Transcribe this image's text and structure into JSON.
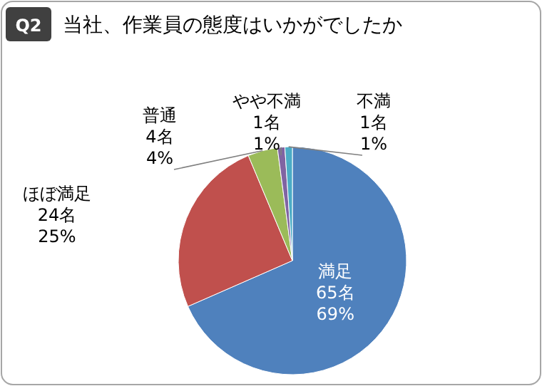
{
  "chart_data": {
    "type": "pie",
    "title": "当社、作業員の態度はいかがでしたか",
    "annotations": [
      "Q2"
    ],
    "categories": [
      "満足",
      "ほぼ満足",
      "普通",
      "やや不満",
      "不満"
    ],
    "values": [
      65,
      24,
      4,
      1,
      1
    ],
    "value_labels": [
      "65名\n69%",
      "24名\n25%",
      "4名\n4%",
      "1名\n1%",
      "1名\n1%"
    ],
    "colors": [
      "#4f81bd",
      "#c0504d",
      "#9bbb59",
      "#8064a2",
      "#4bacc6"
    ]
  }
}
